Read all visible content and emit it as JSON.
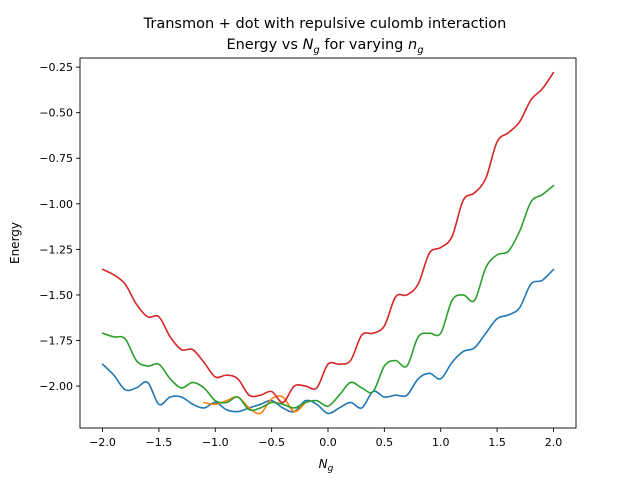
{
  "chart_data": {
    "type": "line",
    "title_line1": "Transmon + dot with repulsive culomb interaction",
    "title_line2_prefix": "Energy vs ",
    "title_line2_mid": " for varying ",
    "xlabel": "N",
    "xlabel_sub": "g",
    "title_var1": "N",
    "title_var1_sub": "g",
    "title_var2": "n",
    "title_var2_sub": "g",
    "ylabel": "Energy",
    "xlim": [
      -2.2,
      2.2
    ],
    "ylim": [
      -2.23,
      -0.2
    ],
    "xticks": [
      -2.0,
      -1.5,
      -1.0,
      -0.5,
      0.0,
      0.5,
      1.0,
      1.5,
      2.0
    ],
    "xtick_labels": [
      "−2.0",
      "−1.5",
      "−1.0",
      "−0.5",
      "0.0",
      "0.5",
      "1.0",
      "1.5",
      "2.0"
    ],
    "yticks": [
      -2.0,
      -1.75,
      -1.5,
      -1.25,
      -1.0,
      -0.75,
      -0.5,
      -0.25
    ],
    "ytick_labels": [
      "−2.00",
      "−1.75",
      "−1.50",
      "−1.25",
      "−1.00",
      "−0.75",
      "−0.50",
      "−0.25"
    ],
    "grid": false,
    "series": [
      {
        "color": "#1f77b4",
        "x": [
          -2.0,
          -1.9,
          -1.8,
          -1.7,
          -1.6,
          -1.5,
          -1.4,
          -1.3,
          -1.2,
          -1.1,
          -1.0,
          -0.9,
          -0.8,
          -0.7,
          -0.6,
          -0.5,
          -0.4,
          -0.3,
          -0.2,
          -0.1,
          0.0,
          0.1,
          0.2,
          0.3,
          0.4,
          0.5,
          0.6,
          0.7,
          0.8,
          0.9,
          1.0,
          1.1,
          1.2,
          1.3,
          1.4,
          1.5,
          1.6,
          1.7,
          1.8,
          1.9,
          2.0
        ],
        "y": [
          -1.88,
          -1.94,
          -2.02,
          -2.01,
          -1.98,
          -2.1,
          -2.06,
          -2.06,
          -2.1,
          -2.12,
          -2.09,
          -2.13,
          -2.14,
          -2.12,
          -2.1,
          -2.08,
          -2.12,
          -2.14,
          -2.08,
          -2.1,
          -2.15,
          -2.12,
          -2.09,
          -2.12,
          -2.03,
          -2.06,
          -2.05,
          -2.05,
          -1.96,
          -1.93,
          -1.96,
          -1.87,
          -1.81,
          -1.79,
          -1.71,
          -1.63,
          -1.61,
          -1.57,
          -1.44,
          -1.42,
          -1.36
        ]
      },
      {
        "color": "#ff7f0e",
        "x": [
          -1.1,
          -1.0,
          -0.9,
          -0.8,
          -0.7,
          -0.6,
          -0.5,
          -0.4,
          -0.3,
          -0.2
        ],
        "y": [
          -2.09,
          -2.1,
          -2.08,
          -2.06,
          -2.12,
          -2.15,
          -2.07,
          -2.06,
          -2.14,
          -2.09
        ]
      },
      {
        "color": "#2ca02c",
        "x": [
          -2.0,
          -1.9,
          -1.8,
          -1.7,
          -1.6,
          -1.5,
          -1.4,
          -1.3,
          -1.2,
          -1.1,
          -1.0,
          -0.9,
          -0.8,
          -0.7,
          -0.6,
          -0.5,
          -0.4,
          -0.3,
          -0.2,
          -0.1,
          0.0,
          0.1,
          0.2,
          0.3,
          0.4,
          0.5,
          0.6,
          0.7,
          0.8,
          0.9,
          1.0,
          1.1,
          1.2,
          1.3,
          1.4,
          1.5,
          1.6,
          1.7,
          1.8,
          1.9,
          2.0
        ],
        "y": [
          -1.71,
          -1.73,
          -1.74,
          -1.86,
          -1.89,
          -1.88,
          -1.96,
          -2.01,
          -1.98,
          -2.01,
          -2.08,
          -2.09,
          -2.06,
          -2.13,
          -2.12,
          -2.09,
          -2.1,
          -2.12,
          -2.09,
          -2.08,
          -2.11,
          -2.05,
          -1.98,
          -2.01,
          -2.03,
          -1.89,
          -1.86,
          -1.89,
          -1.73,
          -1.71,
          -1.71,
          -1.53,
          -1.5,
          -1.53,
          -1.35,
          -1.28,
          -1.26,
          -1.15,
          -0.99,
          -0.95,
          -0.9
        ]
      },
      {
        "color": "#d62728",
        "x": [
          -2.0,
          -1.9,
          -1.8,
          -1.7,
          -1.6,
          -1.5,
          -1.4,
          -1.3,
          -1.2,
          -1.1,
          -1.0,
          -0.9,
          -0.8,
          -0.7,
          -0.6,
          -0.5,
          -0.4,
          -0.3,
          -0.2,
          -0.1,
          0.0,
          0.1,
          0.2,
          0.3,
          0.4,
          0.5,
          0.6,
          0.7,
          0.8,
          0.9,
          1.0,
          1.1,
          1.2,
          1.3,
          1.4,
          1.5,
          1.6,
          1.7,
          1.8,
          1.9,
          2.0
        ],
        "y": [
          -1.36,
          -1.39,
          -1.44,
          -1.55,
          -1.62,
          -1.62,
          -1.73,
          -1.8,
          -1.8,
          -1.87,
          -1.95,
          -1.94,
          -1.96,
          -2.05,
          -2.05,
          -2.03,
          -2.09,
          -2.0,
          -2.0,
          -2.01,
          -1.88,
          -1.88,
          -1.86,
          -1.72,
          -1.71,
          -1.67,
          -1.51,
          -1.5,
          -1.44,
          -1.27,
          -1.24,
          -1.18,
          -0.98,
          -0.94,
          -0.86,
          -0.66,
          -0.61,
          -0.55,
          -0.43,
          -0.37,
          -0.28
        ]
      }
    ]
  }
}
